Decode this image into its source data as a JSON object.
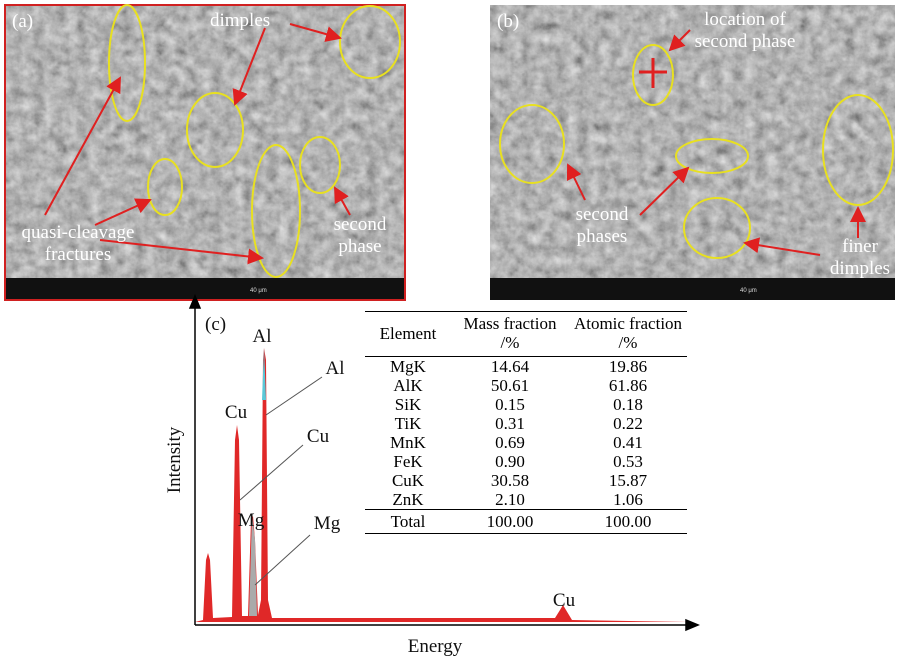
{
  "panel_a": {
    "label": "(a)",
    "dimples": "dimples",
    "quasi_cleavage_fractures": [
      "quasi-cleavage",
      "fractures"
    ],
    "second_phase": [
      "second",
      "phase"
    ],
    "scale_bar": "40 μm"
  },
  "panel_b": {
    "label": "(b)",
    "location_of_second_phase": [
      "location of",
      "second phase"
    ],
    "second_phases": [
      "second",
      "phases"
    ],
    "finer_dimples": [
      "finer",
      "dimples"
    ],
    "scale_bar": "40 μm"
  },
  "panel_c": {
    "label": "(c)",
    "y_label": "Intensity",
    "x_label": "Energy",
    "peak_labels": [
      "Al",
      "Al",
      "Cu",
      "Cu",
      "Mg",
      "Mg",
      "Cu"
    ],
    "table": {
      "header": [
        "Element",
        "Mass fraction /%",
        "Atomic fraction /%"
      ],
      "rows": [
        [
          "MgK",
          "14.64",
          "19.86"
        ],
        [
          "AlK",
          "50.61",
          "61.86"
        ],
        [
          "SiK",
          "0.15",
          "0.18"
        ],
        [
          "TiK",
          "0.31",
          "0.22"
        ],
        [
          "MnK",
          "0.69",
          "0.41"
        ],
        [
          "FeK",
          "0.90",
          "0.53"
        ],
        [
          "CuK",
          "30.58",
          "15.87"
        ],
        [
          "ZnK",
          "2.10",
          "1.06"
        ]
      ],
      "total": [
        "Total",
        "100.00",
        "100.00"
      ]
    }
  }
}
